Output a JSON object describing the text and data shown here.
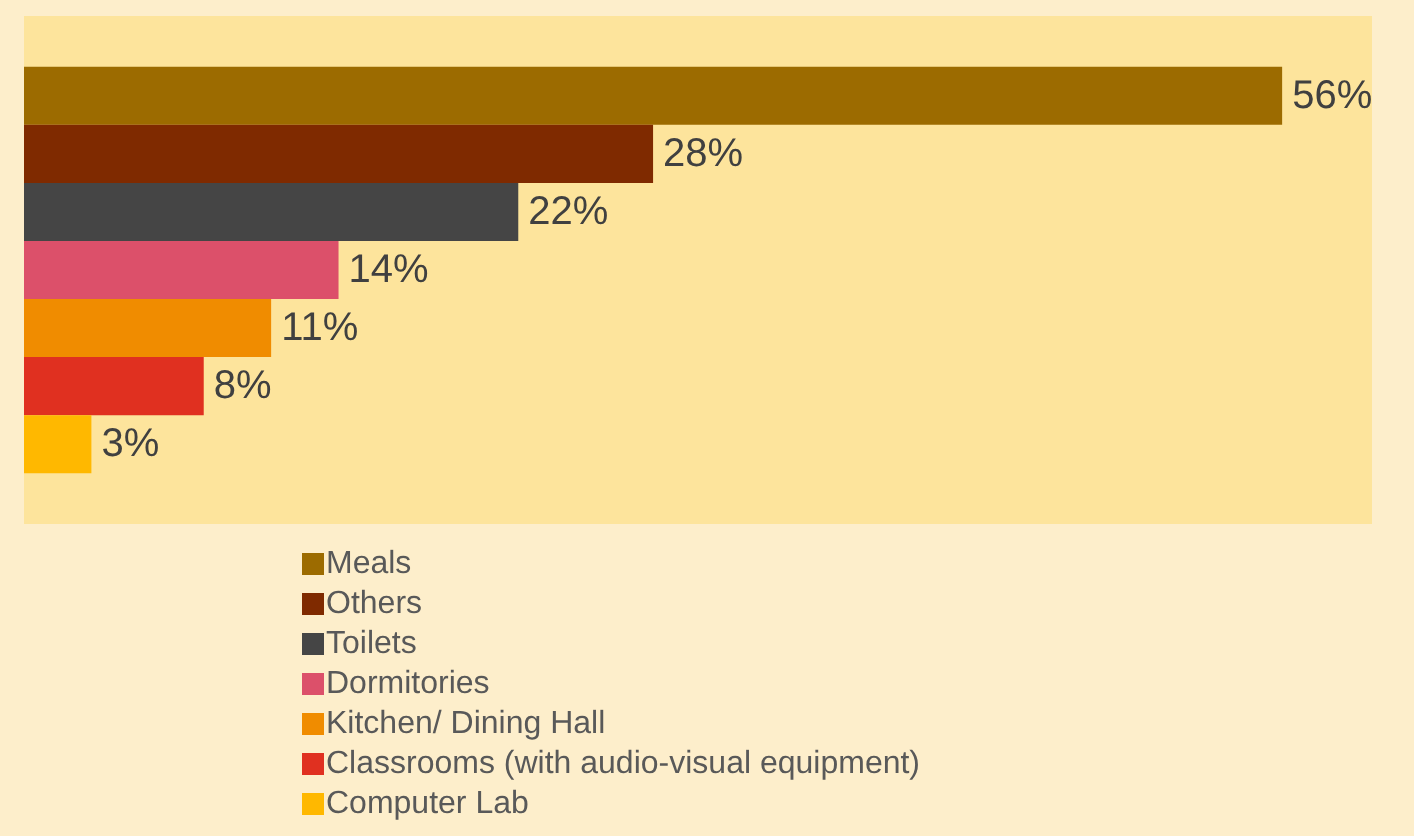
{
  "chart_data": {
    "type": "bar",
    "orientation": "horizontal",
    "categories": [
      null
    ],
    "legend": "bottom",
    "grid": false,
    "data_labels": true,
    "series": [
      {
        "name": "Meals",
        "color": "#9c6b00",
        "values": [
          56
        ],
        "value_labels": [
          "56%"
        ]
      },
      {
        "name": "Others",
        "color": "#7f2a00",
        "values": [
          28
        ],
        "value_labels": [
          "28%"
        ]
      },
      {
        "name": "Toilets",
        "color": "#454545",
        "values": [
          22
        ],
        "value_labels": [
          "22%"
        ]
      },
      {
        "name": "Dormitories",
        "color": "#dc506a",
        "values": [
          14
        ],
        "value_labels": [
          "14%"
        ]
      },
      {
        "name": "Kitchen/ Dining Hall",
        "color": "#f08c00",
        "values": [
          11
        ],
        "value_labels": [
          "11%"
        ]
      },
      {
        "name": "Classrooms (with audio-visual equipment)",
        "color": "#e03020",
        "values": [
          8
        ],
        "value_labels": [
          "8%"
        ]
      },
      {
        "name": "Computer Lab",
        "color": "#ffb800",
        "values": [
          3
        ],
        "value_labels": [
          "3%"
        ]
      }
    ]
  }
}
